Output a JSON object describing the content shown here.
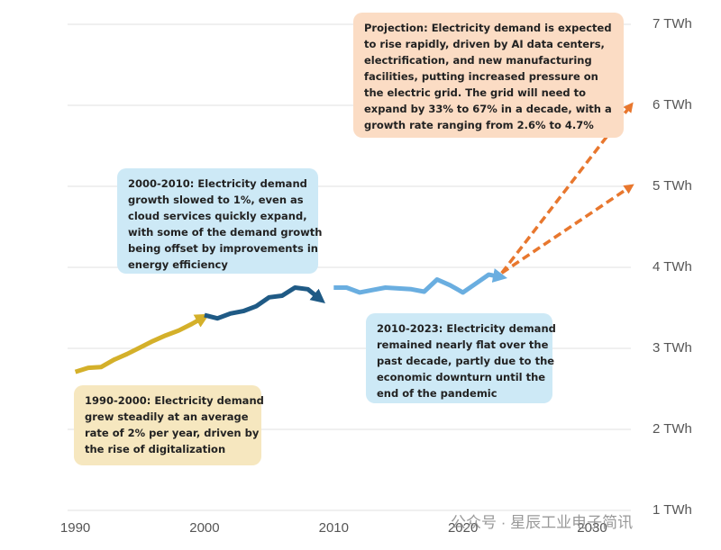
{
  "chart_data": {
    "type": "line",
    "xlim": [
      1989.4,
      2033
    ],
    "xticks": [
      1990,
      2000,
      2010,
      2020,
      2030
    ],
    "ylim": [
      1,
      7
    ],
    "yticks": [
      {
        "value": 1,
        "label": "1 TWh"
      },
      {
        "value": 2,
        "label": "2 TWh"
      },
      {
        "value": 3,
        "label": "3 TWh"
      },
      {
        "value": 4,
        "label": "4 TWh"
      },
      {
        "value": 5,
        "label": "5 TWh"
      },
      {
        "value": 6,
        "label": "6 TWh"
      },
      {
        "value": 7,
        "label": "7 TWh"
      }
    ],
    "grid": true,
    "series": [
      {
        "color": "#d4b02a",
        "x": [
          1990,
          1991,
          1992,
          1993,
          1994,
          1995,
          1996,
          1997,
          1998,
          1999,
          2000
        ],
        "values": [
          2.71,
          2.76,
          2.77,
          2.86,
          2.93,
          3.01,
          3.09,
          3.16,
          3.22,
          3.3,
          3.39
        ]
      },
      {
        "color": "#1f5a85",
        "x": [
          2000,
          2001,
          2002,
          2003,
          2004,
          2005,
          2006,
          2007,
          2008,
          2009
        ],
        "values": [
          3.41,
          3.37,
          3.43,
          3.46,
          3.52,
          3.63,
          3.65,
          3.75,
          3.73,
          3.6
        ]
      },
      {
        "color": "#6aaee0",
        "x": [
          2010,
          2011,
          2012,
          2013,
          2014,
          2015,
          2016,
          2017,
          2018,
          2019,
          2020,
          2021,
          2022,
          2023
        ],
        "values": [
          3.75,
          3.75,
          3.69,
          3.72,
          3.75,
          3.74,
          3.73,
          3.7,
          3.85,
          3.78,
          3.69,
          3.8,
          3.91,
          3.88
        ]
      },
      {
        "color": "#e8772e",
        "dashed": true,
        "x": [
          2023,
          2033
        ],
        "values": [
          3.93,
          6.0
        ]
      },
      {
        "color": "#e8772e",
        "dashed": true,
        "x": [
          2023,
          2033
        ],
        "values": [
          3.93,
          5.0
        ]
      }
    ],
    "annotations": [
      {
        "lines": [
          "Projection: Electricity demand is expected",
          "to rise rapidly, driven by AI data centers,",
          "electrification, and new manufacturing",
          "facilities, putting increased pressure on",
          "the electric grid. The grid will need to",
          "expand by 33% to 67% in a decade, with a",
          "growth rate ranging from 2.6% to 4.7%"
        ],
        "color": "#fbdcc4"
      },
      {
        "lines": [
          "2000-2010: Electricity demand",
          "growth slowed to 1%, even as",
          "cloud services quickly expand,",
          "with some of the demand growth",
          "being offset by improvements in",
          "energy efficiency"
        ],
        "color": "#cde9f6"
      },
      {
        "lines": [
          "2010-2023: Electricity demand",
          "remained nearly flat over the",
          "past decade, partly due to the",
          "economic downturn until the",
          "end of the pandemic"
        ],
        "color": "#cde9f6"
      },
      {
        "lines": [
          "1990-2000: Electricity demand",
          "grew steadily at an average",
          "rate of 2% per year, driven by",
          "the rise of digitalization"
        ],
        "color": "#f6e7bf"
      }
    ],
    "watermark": "公众号 · 星辰工业电子简讯"
  }
}
